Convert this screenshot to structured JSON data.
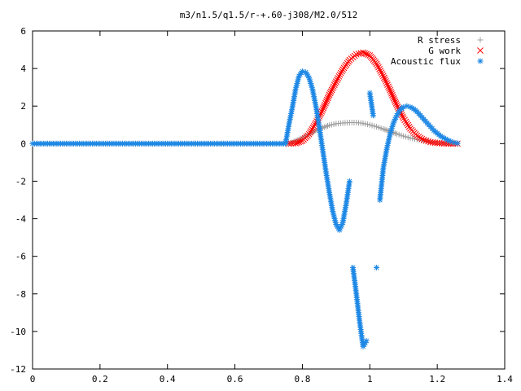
{
  "chart_data": {
    "type": "scatter",
    "title": "m3/n1.5/q1.5/r-+.60-j308/M2.0/512",
    "xlabel": "",
    "ylabel": "",
    "xlim": [
      0,
      1.4
    ],
    "ylim": [
      -12,
      6
    ],
    "x_ticks": [
      "0",
      "0.2",
      "0.4",
      "0.6",
      "0.8",
      "1",
      "1.2",
      "1.4"
    ],
    "x_tick_values": [
      0,
      0.2,
      0.4,
      0.6,
      0.8,
      1.0,
      1.2,
      1.4
    ],
    "y_ticks": [
      "6",
      "4",
      "2",
      "0",
      "-2",
      "-4",
      "-6",
      "-8",
      "-10",
      "-12"
    ],
    "y_tick_values": [
      6,
      4,
      2,
      0,
      -2,
      -4,
      -6,
      -8,
      -10,
      -12
    ],
    "grid": false,
    "legend_position": "top-right",
    "series": [
      {
        "name": "R stress",
        "marker": "plus",
        "color": "#a0a0a0",
        "x": [
          0.0,
          0.05,
          0.1,
          0.15,
          0.2,
          0.25,
          0.3,
          0.35,
          0.4,
          0.45,
          0.5,
          0.55,
          0.6,
          0.65,
          0.7,
          0.75,
          0.76,
          0.78,
          0.8,
          0.82,
          0.84,
          0.86,
          0.88,
          0.9,
          0.92,
          0.94,
          0.96,
          0.98,
          1.0,
          1.02,
          1.04,
          1.06,
          1.08,
          1.1,
          1.12,
          1.14,
          1.16,
          1.18,
          1.2,
          1.22,
          1.24,
          1.26
        ],
        "y": [
          0,
          0,
          0,
          0,
          0,
          0,
          0,
          0,
          0,
          0,
          0,
          0,
          0,
          0,
          0,
          0,
          0.0,
          0.15,
          0.3,
          0.5,
          0.7,
          0.85,
          0.98,
          1.06,
          1.1,
          1.12,
          1.12,
          1.08,
          1.0,
          0.9,
          0.78,
          0.65,
          0.52,
          0.4,
          0.3,
          0.22,
          0.15,
          0.1,
          0.06,
          0.03,
          0.01,
          0.0
        ]
      },
      {
        "name": "G work",
        "marker": "cross",
        "color": "#ff0000",
        "x": [
          0.76,
          0.78,
          0.8,
          0.82,
          0.84,
          0.86,
          0.88,
          0.9,
          0.92,
          0.94,
          0.96,
          0.98,
          1.0,
          1.02,
          1.04,
          1.06,
          1.08,
          1.1,
          1.12,
          1.14,
          1.16,
          1.18,
          1.2,
          1.22,
          1.24,
          1.26
        ],
        "y": [
          0.0,
          0.02,
          0.15,
          0.5,
          1.1,
          1.8,
          2.6,
          3.3,
          3.95,
          4.45,
          4.75,
          4.85,
          4.7,
          4.25,
          3.6,
          2.85,
          2.05,
          1.35,
          0.8,
          0.42,
          0.2,
          0.08,
          0.03,
          0.01,
          0.0,
          0.0
        ]
      },
      {
        "name": "Acoustic flux",
        "marker": "star",
        "color": "#1e88e5",
        "x": [
          0.0,
          0.05,
          0.1,
          0.15,
          0.2,
          0.25,
          0.3,
          0.35,
          0.4,
          0.45,
          0.5,
          0.55,
          0.6,
          0.65,
          0.7,
          0.75,
          0.76,
          0.77,
          0.78,
          0.79,
          0.8,
          0.81,
          0.82,
          0.83,
          0.84,
          0.85,
          0.86,
          0.87,
          0.88,
          0.89,
          0.9,
          0.91,
          0.92,
          0.93,
          0.94,
          0.95,
          0.96,
          0.97,
          0.98,
          0.99,
          1.0,
          1.01,
          1.02,
          1.03,
          1.04,
          1.05,
          1.06,
          1.07,
          1.08,
          1.09,
          1.1,
          1.11,
          1.12,
          1.13,
          1.14,
          1.15,
          1.16,
          1.17,
          1.18,
          1.19,
          1.2,
          1.21,
          1.22,
          1.23,
          1.24,
          1.25,
          1.26
        ],
        "y": [
          0,
          0,
          0,
          0,
          0,
          0,
          0,
          0,
          0,
          0,
          0,
          0,
          0,
          0,
          0,
          0,
          1.0,
          1.9,
          2.9,
          3.6,
          3.85,
          3.8,
          3.5,
          2.9,
          2.0,
          0.9,
          -0.3,
          -1.5,
          -2.6,
          -3.6,
          -4.3,
          -4.6,
          -4.2,
          -3.2,
          -2.0,
          -6.6,
          -8.0,
          -9.5,
          -10.8,
          -10.5,
          2.7,
          1.5,
          -6.6,
          -3.0,
          -1.3,
          -0.3,
          0.5,
          1.1,
          1.5,
          1.8,
          1.95,
          2.0,
          1.95,
          1.85,
          1.7,
          1.5,
          1.3,
          1.1,
          0.9,
          0.7,
          0.55,
          0.4,
          0.3,
          0.2,
          0.12,
          0.06,
          0.02
        ]
      }
    ]
  }
}
